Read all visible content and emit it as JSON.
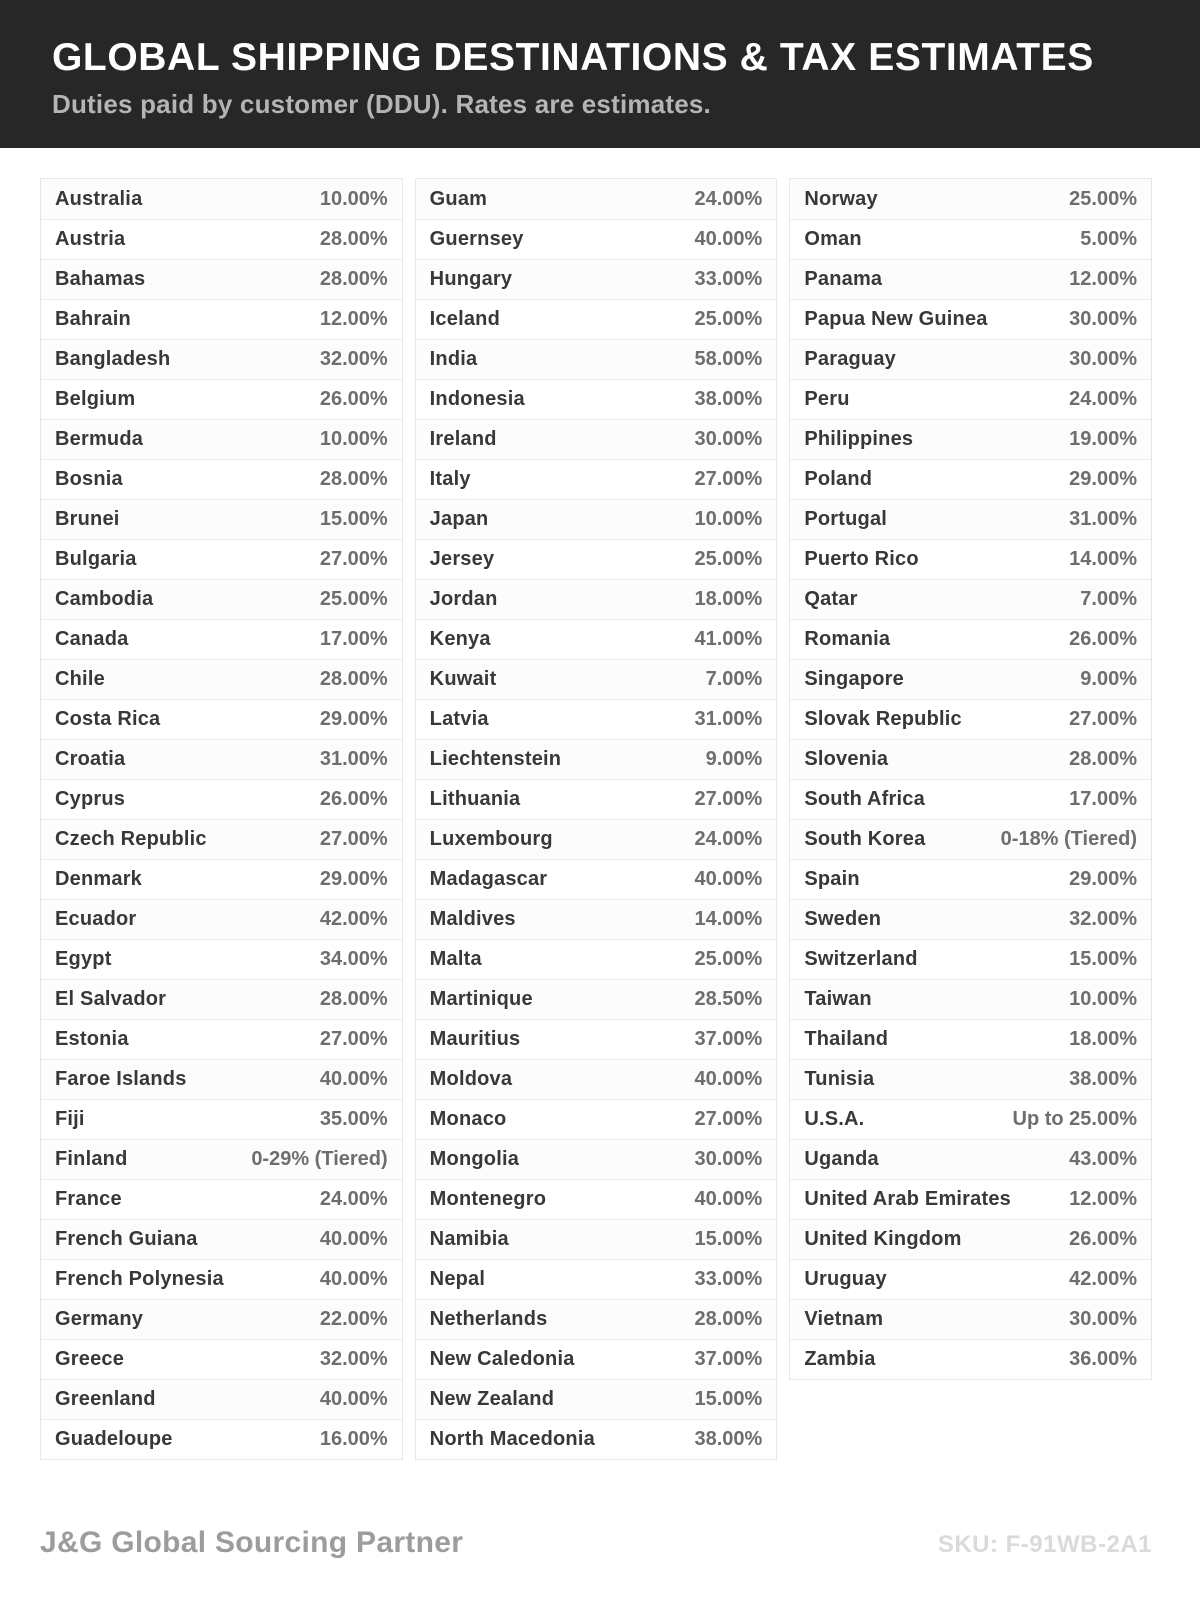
{
  "header": {
    "title": "GLOBAL SHIPPING DESTINATIONS & TAX ESTIMATES",
    "subtitle": "Duties paid by customer (DDU). Rates are estimates."
  },
  "table": {
    "columns": [
      {
        "rows": [
          {
            "country": "Australia",
            "rate": "10.00%"
          },
          {
            "country": "Austria",
            "rate": "28.00%"
          },
          {
            "country": "Bahamas",
            "rate": "28.00%"
          },
          {
            "country": "Bahrain",
            "rate": "12.00%"
          },
          {
            "country": "Bangladesh",
            "rate": "32.00%"
          },
          {
            "country": "Belgium",
            "rate": "26.00%"
          },
          {
            "country": "Bermuda",
            "rate": "10.00%"
          },
          {
            "country": "Bosnia",
            "rate": "28.00%"
          },
          {
            "country": "Brunei",
            "rate": "15.00%"
          },
          {
            "country": "Bulgaria",
            "rate": "27.00%"
          },
          {
            "country": "Cambodia",
            "rate": "25.00%"
          },
          {
            "country": "Canada",
            "rate": "17.00%"
          },
          {
            "country": "Chile",
            "rate": "28.00%"
          },
          {
            "country": "Costa Rica",
            "rate": "29.00%"
          },
          {
            "country": "Croatia",
            "rate": "31.00%"
          },
          {
            "country": "Cyprus",
            "rate": "26.00%"
          },
          {
            "country": "Czech Republic",
            "rate": "27.00%"
          },
          {
            "country": "Denmark",
            "rate": "29.00%"
          },
          {
            "country": "Ecuador",
            "rate": "42.00%"
          },
          {
            "country": "Egypt",
            "rate": "34.00%"
          },
          {
            "country": "El Salvador",
            "rate": "28.00%"
          },
          {
            "country": "Estonia",
            "rate": "27.00%"
          },
          {
            "country": "Faroe Islands",
            "rate": "40.00%"
          },
          {
            "country": "Fiji",
            "rate": "35.00%"
          },
          {
            "country": "Finland",
            "rate": "0-29% (Tiered)"
          },
          {
            "country": "France",
            "rate": "24.00%"
          },
          {
            "country": "French Guiana",
            "rate": "40.00%"
          },
          {
            "country": "French Polynesia",
            "rate": "40.00%"
          },
          {
            "country": "Germany",
            "rate": "22.00%"
          },
          {
            "country": "Greece",
            "rate": "32.00%"
          },
          {
            "country": "Greenland",
            "rate": "40.00%"
          },
          {
            "country": "Guadeloupe",
            "rate": "16.00%"
          }
        ]
      },
      {
        "rows": [
          {
            "country": "Guam",
            "rate": "24.00%"
          },
          {
            "country": "Guernsey",
            "rate": "40.00%"
          },
          {
            "country": "Hungary",
            "rate": "33.00%"
          },
          {
            "country": "Iceland",
            "rate": "25.00%"
          },
          {
            "country": "India",
            "rate": "58.00%"
          },
          {
            "country": "Indonesia",
            "rate": "38.00%"
          },
          {
            "country": "Ireland",
            "rate": "30.00%"
          },
          {
            "country": "Italy",
            "rate": "27.00%"
          },
          {
            "country": "Japan",
            "rate": "10.00%"
          },
          {
            "country": "Jersey",
            "rate": "25.00%"
          },
          {
            "country": "Jordan",
            "rate": "18.00%"
          },
          {
            "country": "Kenya",
            "rate": "41.00%"
          },
          {
            "country": "Kuwait",
            "rate": "7.00%"
          },
          {
            "country": "Latvia",
            "rate": "31.00%"
          },
          {
            "country": "Liechtenstein",
            "rate": "9.00%"
          },
          {
            "country": "Lithuania",
            "rate": "27.00%"
          },
          {
            "country": "Luxembourg",
            "rate": "24.00%"
          },
          {
            "country": "Madagascar",
            "rate": "40.00%"
          },
          {
            "country": "Maldives",
            "rate": "14.00%"
          },
          {
            "country": "Malta",
            "rate": "25.00%"
          },
          {
            "country": "Martinique",
            "rate": "28.50%"
          },
          {
            "country": "Mauritius",
            "rate": "37.00%"
          },
          {
            "country": "Moldova",
            "rate": "40.00%"
          },
          {
            "country": "Monaco",
            "rate": "27.00%"
          },
          {
            "country": "Mongolia",
            "rate": "30.00%"
          },
          {
            "country": "Montenegro",
            "rate": "40.00%"
          },
          {
            "country": "Namibia",
            "rate": "15.00%"
          },
          {
            "country": "Nepal",
            "rate": "33.00%"
          },
          {
            "country": "Netherlands",
            "rate": "28.00%"
          },
          {
            "country": "New Caledonia",
            "rate": "37.00%"
          },
          {
            "country": "New Zealand",
            "rate": "15.00%"
          },
          {
            "country": "North Macedonia",
            "rate": "38.00%"
          }
        ]
      },
      {
        "rows": [
          {
            "country": "Norway",
            "rate": "25.00%"
          },
          {
            "country": "Oman",
            "rate": "5.00%"
          },
          {
            "country": "Panama",
            "rate": "12.00%"
          },
          {
            "country": "Papua New Guinea",
            "rate": "30.00%"
          },
          {
            "country": "Paraguay",
            "rate": "30.00%"
          },
          {
            "country": "Peru",
            "rate": "24.00%"
          },
          {
            "country": "Philippines",
            "rate": "19.00%"
          },
          {
            "country": "Poland",
            "rate": "29.00%"
          },
          {
            "country": "Portugal",
            "rate": "31.00%"
          },
          {
            "country": "Puerto Rico",
            "rate": "14.00%"
          },
          {
            "country": "Qatar",
            "rate": "7.00%"
          },
          {
            "country": "Romania",
            "rate": "26.00%"
          },
          {
            "country": "Singapore",
            "rate": "9.00%"
          },
          {
            "country": "Slovak Republic",
            "rate": "27.00%"
          },
          {
            "country": "Slovenia",
            "rate": "28.00%"
          },
          {
            "country": "South Africa",
            "rate": "17.00%"
          },
          {
            "country": "South Korea",
            "rate": "0-18% (Tiered)"
          },
          {
            "country": "Spain",
            "rate": "29.00%"
          },
          {
            "country": "Sweden",
            "rate": "32.00%"
          },
          {
            "country": "Switzerland",
            "rate": "15.00%"
          },
          {
            "country": "Taiwan",
            "rate": "10.00%"
          },
          {
            "country": "Thailand",
            "rate": "18.00%"
          },
          {
            "country": "Tunisia",
            "rate": "38.00%"
          },
          {
            "country": "U.S.A.",
            "rate": "Up to 25.00%"
          },
          {
            "country": "Uganda",
            "rate": "43.00%"
          },
          {
            "country": "United Arab Emirates",
            "rate": "12.00%"
          },
          {
            "country": "United Kingdom",
            "rate": "26.00%"
          },
          {
            "country": "Uruguay",
            "rate": "42.00%"
          },
          {
            "country": "Vietnam",
            "rate": "30.00%"
          },
          {
            "country": "Zambia",
            "rate": "36.00%"
          }
        ]
      }
    ]
  },
  "footer": {
    "brand": "J&G Global Sourcing Partner",
    "sku": "SKU: F-91WB-2A1"
  },
  "colors": {
    "header_bg": "#272727",
    "title_text": "#ffffff",
    "subtitle_text": "#b4b4b4",
    "country_text": "#383838",
    "rate_text": "#6e6e6e",
    "row_border": "#ececec",
    "brand_text": "#9c9c9c",
    "sku_text": "#dadada"
  }
}
